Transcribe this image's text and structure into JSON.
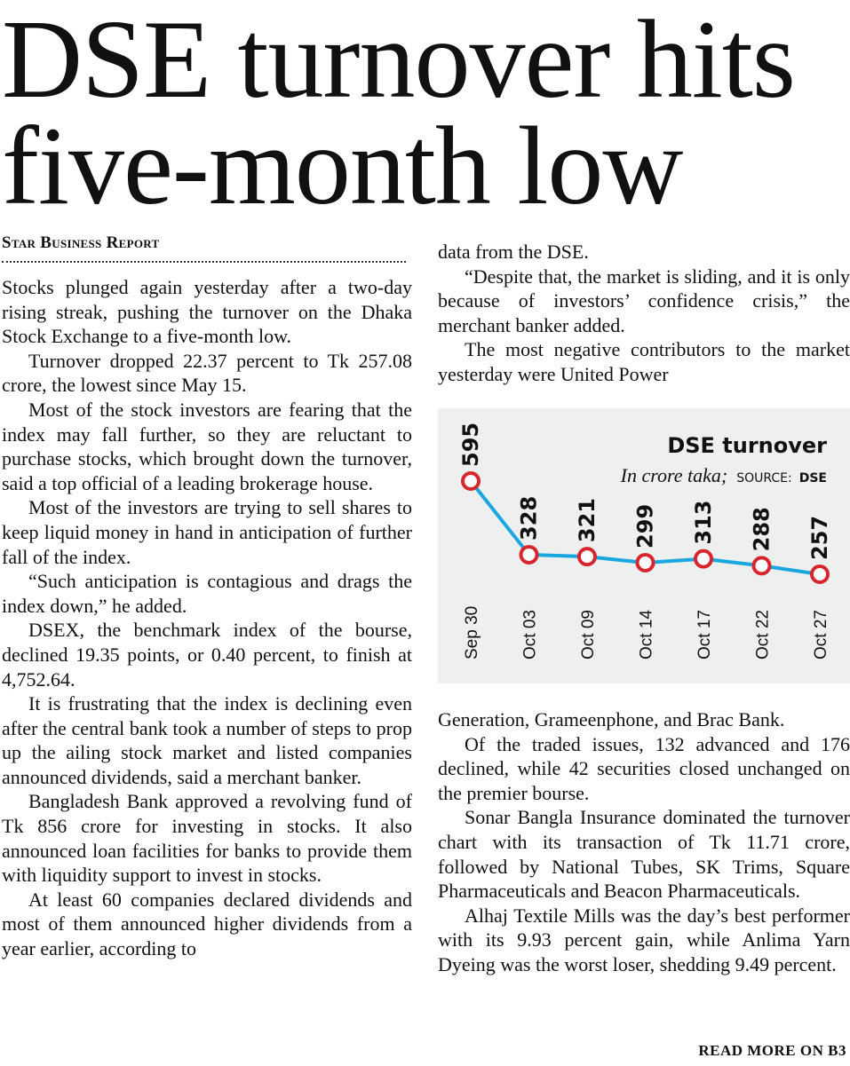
{
  "headline": {
    "line1": "DSE turnover hits",
    "line2": "five-month low"
  },
  "byline": "Star Business Report",
  "column1": [
    "Stocks plunged again yesterday after a two-day rising streak, pushing the turnover on the Dhaka Stock Exchange to a five-month low.",
    "Turnover dropped 22.37 percent to Tk 257.08 crore, the lowest since May 15.",
    "Most of the stock investors are fearing that the index may fall further, so they are reluctant to purchase stocks, which brought down the turnover, said a top official of a leading brokerage house.",
    "Most of the investors are trying to sell shares to keep liquid money in hand in anticipation of further fall of the index.",
    "“Such anticipation is contagious and drags the index down,” he added.",
    "DSEX, the benchmark index of the bourse, declined 19.35 points, or 0.40 percent, to finish at 4,752.64.",
    "It is frustrating that the index is declining even after the central bank took a number of steps to prop up the ailing stock market and listed companies announced dividends, said a merchant banker.",
    "Bangladesh Bank approved a revolving fund of Tk 856 crore for investing in stocks. It also announced loan facilities for banks to provide them with liquidity support to invest in stocks.",
    "At least 60 companies declared dividends and most of them announced higher dividends from a year earlier, according to"
  ],
  "column2_top": [
    "data from the DSE.",
    "“Despite that, the market is sliding, and it is only because of investors’ confidence crisis,” the merchant banker added.",
    "The most negative contributors to the market yesterday were United Power"
  ],
  "column2_bottom": [
    "Generation, Grameenphone, and Brac Bank.",
    "Of the traded issues, 132 advanced and 176 declined, while 42 securities closed unchanged on the premier bourse.",
    "Sonar Bangla Insurance dominated the turnover chart with its transaction of Tk 11.71 crore, followed by National Tubes, SK Trims, Square Pharmaceuticals and Beacon Pharmaceuticals.",
    "Alhaj Textile Mills was the day’s best performer with its 9.93 percent gain, while Anlima Yarn Dyeing was the worst loser, shedding 9.49 percent."
  ],
  "read_more": "READ MORE ON B3",
  "chart_data": {
    "type": "line",
    "title": "DSE turnover",
    "subtitle": "In crore taka;",
    "source_label": "SOURCE:",
    "source_value": "DSE",
    "categories": [
      "Sep 30",
      "Oct 03",
      "Oct 09",
      "Oct 14",
      "Oct 17",
      "Oct 22",
      "Oct 27"
    ],
    "values": [
      595,
      328,
      321,
      299,
      313,
      288,
      257
    ],
    "data_labels": [
      "595",
      "328",
      "321",
      "299",
      "313",
      "288",
      "257"
    ],
    "grid": false,
    "colors": {
      "line": "#1aa7e0",
      "marker": "#d7262e",
      "background": "#eef0f0"
    }
  }
}
